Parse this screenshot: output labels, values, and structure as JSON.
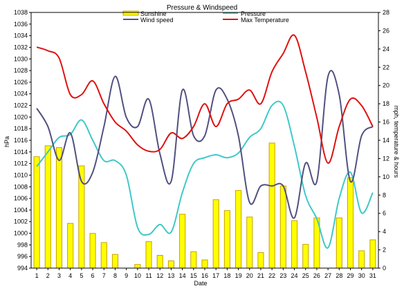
{
  "chart_data": {
    "type": "bar",
    "title": "Pressure & Windspeed",
    "xlabel": "Date",
    "ylabel_left": "hPa",
    "ylabel_right": "mph, temperature & hours",
    "x": [
      1,
      2,
      3,
      4,
      5,
      6,
      7,
      8,
      9,
      10,
      11,
      12,
      13,
      14,
      15,
      16,
      17,
      18,
      19,
      20,
      21,
      22,
      23,
      24,
      25,
      26,
      27,
      28,
      29,
      30,
      31
    ],
    "ylim_left": [
      994,
      1038
    ],
    "ylim_right": [
      0,
      28
    ],
    "grid": false,
    "legend_position": "top-center",
    "series": [
      {
        "name": "Sunshine",
        "kind": "bar",
        "axis": "right",
        "color": "#ffff00",
        "stroke": "#c8a000",
        "values": [
          12.2,
          13.4,
          13.2,
          4.9,
          11.2,
          3.8,
          2.8,
          1.5,
          0,
          0.4,
          2.9,
          1.4,
          0.8,
          5.9,
          1.8,
          0.9,
          7.5,
          6.3,
          8.5,
          5.6,
          1.7,
          13.7,
          9.0,
          5.2,
          2.6,
          5.5,
          0,
          5.5,
          9.9,
          1.9,
          3.1
        ]
      },
      {
        "name": "Pressure",
        "kind": "line",
        "axis": "left",
        "color": "#40c8c8",
        "values": [
          1011.5,
          1014,
          1016.5,
          1017,
          1019.5,
          1016,
          1012.5,
          1012.5,
          1010,
          1001,
          999.8,
          1001.5,
          1000.2,
          1007,
          1012,
          1013,
          1013.5,
          1013,
          1013.8,
          1016.5,
          1018,
          1022,
          1022,
          1015,
          1006.5,
          1002.5,
          997.5,
          1006,
          1010.5,
          1003.5,
          1007
        ]
      },
      {
        "name": "Wind speed",
        "kind": "line",
        "axis": "right",
        "color": "#505080",
        "values": [
          17.5,
          15.5,
          11.8,
          14.8,
          9.5,
          10.5,
          15.5,
          21.0,
          16.5,
          15.5,
          18.5,
          12.5,
          9.5,
          19.5,
          14.5,
          14.5,
          19.5,
          18.5,
          14.5,
          7.2,
          9.0,
          9.0,
          9.0,
          5.5,
          11.5,
          9.5,
          21.0,
          19.0,
          9.5,
          14.5,
          15.5
        ]
      },
      {
        "name": "Max Temperature",
        "kind": "line",
        "axis": "right",
        "color": "#e01010",
        "values": [
          24.2,
          23.8,
          23.0,
          19.0,
          19.0,
          20.5,
          18.0,
          16.0,
          15.0,
          13.5,
          12.8,
          13.0,
          14.8,
          14.2,
          15.5,
          18.0,
          15.5,
          18.0,
          18.5,
          19.5,
          18.0,
          21.5,
          23.5,
          25.5,
          21.5,
          16.5,
          11.5,
          15.5,
          18.5,
          17.8,
          15.5
        ]
      }
    ],
    "left_ticks": [
      994,
      996,
      998,
      1000,
      1002,
      1004,
      1006,
      1008,
      1010,
      1012,
      1014,
      1016,
      1018,
      1020,
      1022,
      1024,
      1026,
      1028,
      1030,
      1032,
      1034,
      1036,
      1038
    ],
    "right_ticks": [
      0,
      2,
      4,
      6,
      8,
      10,
      12,
      14,
      16,
      18,
      20,
      22,
      24,
      26,
      28
    ]
  }
}
